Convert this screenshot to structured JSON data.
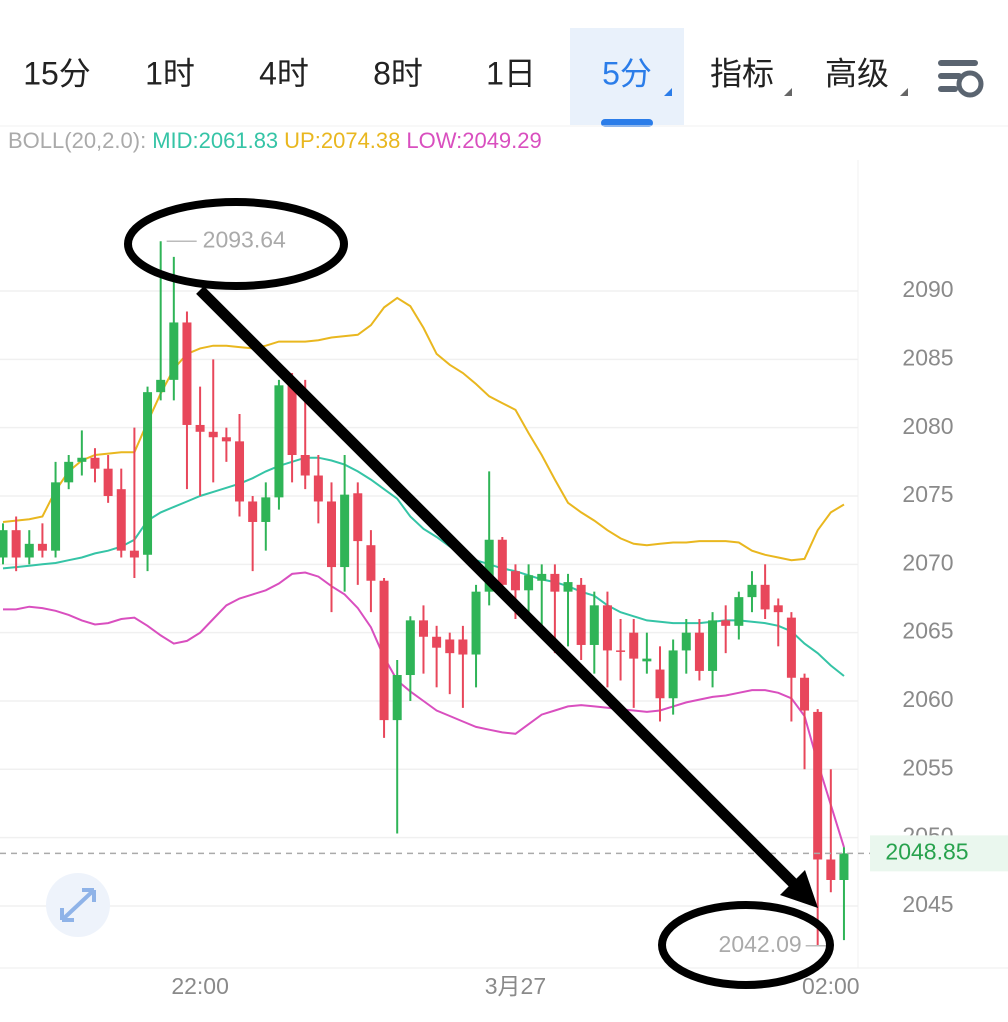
{
  "tabs": [
    "15分",
    "1时",
    "4时",
    "8时",
    "1日",
    "5分",
    "指标",
    "高级"
  ],
  "chart_data": {
    "type": "candlestick",
    "indicator_label": "BOLL(20,2.0):",
    "categories": [
      null,
      null,
      null,
      null,
      null,
      null,
      null,
      null,
      null,
      null,
      null,
      null,
      null,
      null,
      null,
      "22:00",
      null,
      null,
      null,
      null,
      null,
      null,
      null,
      null,
      null,
      null,
      null,
      null,
      null,
      null,
      null,
      null,
      null,
      null,
      null,
      null,
      null,
      null,
      null,
      "3月27",
      null,
      null,
      null,
      null,
      null,
      null,
      null,
      null,
      null,
      null,
      null,
      null,
      null,
      null,
      null,
      null,
      null,
      null,
      null,
      null,
      null,
      null,
      null,
      "02:00",
      null
    ],
    "open": [
      2070.5,
      2072.5,
      2070.5,
      2071.5,
      2071,
      2076,
      2077.5,
      2077.8,
      2077,
      2075.5,
      2071,
      2070.7,
      2082.6,
      2083.5,
      2087.7,
      2080.2,
      2079.7,
      2079.3,
      2079,
      2074.6,
      2073.1,
      2074.9,
      2083.1,
      2078,
      2076.5,
      2074.6,
      2069.8,
      2075.2,
      2071.4,
      2068.8,
      2058.6,
      2061.9,
      2065.9,
      2064.7,
      2064.5,
      2064.5,
      2063.4,
      2068,
      2071.8,
      2069.5,
      2068.1,
      2068.8,
      2069.3,
      2068,
      2068.5,
      2064.1,
      2067,
      2063.7,
      2065,
      2062.9,
      2062.3,
      2060.2,
      2063.7,
      2065,
      2062.2,
      2065.9,
      2065.5,
      2067.6,
      2068.5,
      2067,
      2066.1,
      2061.7,
      2059.2,
      2048.4,
      2046.9
    ],
    "high": [
      2073,
      2073.5,
      2072.5,
      2073,
      2077.5,
      2078,
      2079.8,
      2078.5,
      2078,
      2077,
      2080,
      2083,
      2093.64,
      2092.5,
      2088.5,
      2083,
      2085,
      2080,
      2081,
      2075,
      2076,
      2083.5,
      2084,
      2083.5,
      2078,
      2076,
      2078,
      2076,
      2072.5,
      2069,
      2063,
      2066.2,
      2067,
      2065.5,
      2065,
      2065.5,
      2068.5,
      2076.8,
      2072,
      2070,
      2070,
      2070,
      2070,
      2069.3,
      2069,
      2068,
      2068,
      2066,
      2066,
      2065,
      2064,
      2064.5,
      2066,
      2066,
      2066.5,
      2067,
      2068,
      2069.5,
      2070,
      2067.5,
      2066.5,
      2062,
      2059.4,
      2055,
      2049.3
    ],
    "low": [
      2070,
      2069.5,
      2070,
      2070.5,
      2070.5,
      2075.5,
      2076.5,
      2076,
      2074.5,
      2070.5,
      2069,
      2069.5,
      2082,
      2082,
      2075.5,
      2075,
      2076,
      2077.5,
      2073.5,
      2069.5,
      2071,
      2074,
      2076,
      2075.5,
      2073,
      2066.5,
      2068,
      2068.5,
      2066.5,
      2057.3,
      2050.3,
      2060,
      2062,
      2061,
      2060.5,
      2059.5,
      2061,
      2067,
      2067.5,
      2066,
      2066.5,
      2065,
      2063.5,
      2064,
      2063,
      2062,
      2061,
      2061.5,
      2059.5,
      2062,
      2058.5,
      2059,
      2062,
      2061.5,
      2061,
      2063.5,
      2064.5,
      2066.5,
      2066,
      2064,
      2058.5,
      2055,
      2042.09,
      2046,
      2042.5
    ],
    "close": [
      2072.5,
      2070.5,
      2071.5,
      2071,
      2076,
      2077.5,
      2077.8,
      2077,
      2075,
      2071,
      2070.5,
      2082.6,
      2083.5,
      2087.7,
      2080.2,
      2079.7,
      2079.3,
      2079,
      2074.6,
      2073.1,
      2074.9,
      2083.1,
      2078,
      2076.5,
      2074.6,
      2069.8,
      2075.1,
      2071.7,
      2068.8,
      2058.6,
      2061.9,
      2065.9,
      2064.7,
      2063.9,
      2063.5,
      2063.4,
      2068,
      2071.8,
      2068.5,
      2068.1,
      2069.2,
      2069.3,
      2068,
      2068.7,
      2064.1,
      2067,
      2063.7,
      2063.6,
      2063.1,
      2063.1,
      2060.2,
      2063.7,
      2065,
      2062.2,
      2065.9,
      2065.5,
      2067.6,
      2068.5,
      2066.7,
      2066.5,
      2061.7,
      2059.3,
      2048.4,
      2046.9,
      2048.85
    ],
    "up_color": "#2fb457",
    "down_color": "#e8475b",
    "overlays": [
      {
        "name": "MID:",
        "color": "#35c4a6",
        "values": [
          2069.7,
          2069.8,
          2069.9,
          2070,
          2070.1,
          2070.3,
          2070.5,
          2070.8,
          2071,
          2071.3,
          2071.8,
          2073.2,
          2073.8,
          2074.2,
          2074.6,
          2075,
          2075.3,
          2075.6,
          2075.9,
          2076.3,
          2076.8,
          2077.2,
          2077.5,
          2077.8,
          2077.8,
          2077.6,
          2077.3,
          2076.8,
          2076.2,
          2075.5,
          2074.8,
          2073.5,
          2072.6,
          2072,
          2071.3,
          2070.7,
          2070.3,
          2070,
          2069.7,
          2069.5,
          2069.2,
          2068.9,
          2068.7,
          2068.4,
          2068,
          2067.7,
          2067,
          2066.5,
          2066.2,
          2065.9,
          2065.8,
          2065.7,
          2065.7,
          2065.7,
          2065.8,
          2065.9,
          2065.9,
          2065.8,
          2065.7,
          2065.5,
          2065.1,
          2064.2,
          2063.5,
          2062.6,
          2061.83
        ]
      },
      {
        "name": "UP:",
        "color": "#e9b71f",
        "values": [
          2073.1,
          2073.2,
          2073.3,
          2073.5,
          2075.4,
          2076.8,
          2077.6,
          2078,
          2078.1,
          2078.2,
          2078.2,
          2080.4,
          2082.5,
          2084.3,
          2085.4,
          2085.8,
          2086,
          2086,
          2085.9,
          2085.8,
          2086,
          2086.3,
          2086.3,
          2086.3,
          2086.4,
          2086.6,
          2086.7,
          2086.8,
          2087.5,
          2088.8,
          2089.5,
          2088.9,
          2087.3,
          2085.4,
          2084.6,
          2084,
          2083.2,
          2082.3,
          2081.8,
          2081.3,
          2079.6,
          2078,
          2076.2,
          2074.5,
          2073.8,
          2073.2,
          2072.5,
          2071.9,
          2071.5,
          2071.4,
          2071.5,
          2071.6,
          2071.6,
          2071.7,
          2071.7,
          2071.7,
          2071.6,
          2071,
          2070.7,
          2070.5,
          2070.3,
          2070.4,
          2072.5,
          2073.8,
          2074.38
        ]
      },
      {
        "name": "LOW:",
        "color": "#d94fbf",
        "values": [
          2066.7,
          2066.7,
          2066.9,
          2066.8,
          2066.6,
          2066.3,
          2065.9,
          2065.6,
          2065.7,
          2066,
          2066.1,
          2065.5,
          2064.8,
          2064.2,
          2064.4,
          2065,
          2066,
          2067,
          2067.5,
          2067.8,
          2068.1,
          2068.6,
          2069.3,
          2069.4,
          2069.1,
          2068.4,
          2067.8,
          2066.8,
          2065.4,
          2063.2,
          2061.5,
          2060.7,
          2060,
          2059.3,
          2058.9,
          2058.5,
          2058.1,
          2057.9,
          2057.7,
          2057.6,
          2058.3,
          2059,
          2059.3,
          2059.6,
          2059.7,
          2059.6,
          2059.5,
          2059.4,
          2059.3,
          2059.2,
          2059.3,
          2059.6,
          2059.9,
          2060.1,
          2060.3,
          2060.4,
          2060.6,
          2060.8,
          2060.8,
          2060.6,
          2060.2,
          2058.9,
          2055.5,
          2052.4,
          2049.29
        ]
      }
    ],
    "ylim": [
      2040.46,
      2102.15
    ],
    "yticks": [
      2045,
      2050,
      2055,
      2060,
      2065,
      2070,
      2075,
      2080,
      2085,
      2090
    ],
    "grid": true
  }
}
